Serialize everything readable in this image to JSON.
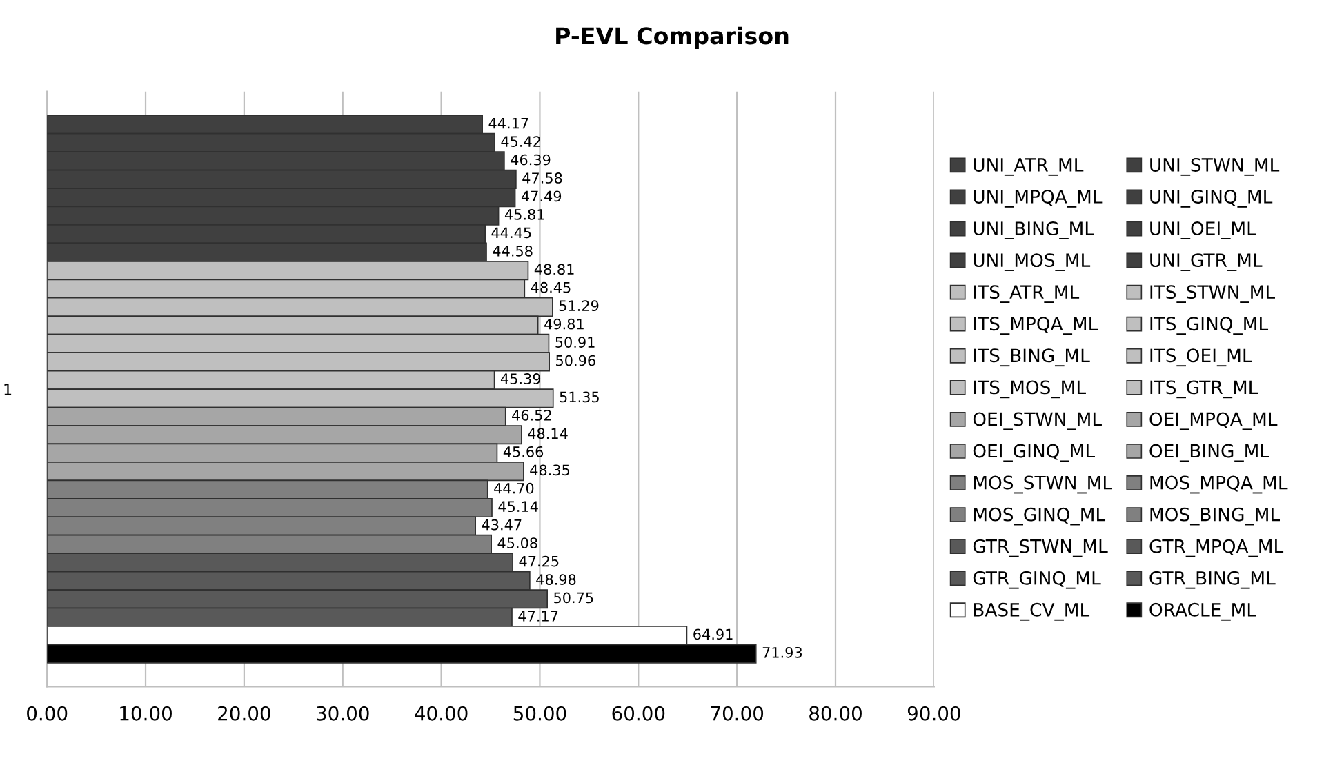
{
  "chart_data": {
    "type": "bar",
    "orientation": "horizontal",
    "title": "P-EVL Comparison",
    "categories": [
      "1"
    ],
    "xlim": [
      0,
      90
    ],
    "xticks": [
      {
        "value": 0,
        "label": "0.00"
      },
      {
        "value": 10,
        "label": "10.00"
      },
      {
        "value": 20,
        "label": "20.00"
      },
      {
        "value": 30,
        "label": "30.00"
      },
      {
        "value": 40,
        "label": "40.00"
      },
      {
        "value": 50,
        "label": "50.00"
      },
      {
        "value": 60,
        "label": "60.00"
      },
      {
        "value": 70,
        "label": "70.00"
      },
      {
        "value": 80,
        "label": "80.00"
      },
      {
        "value": 90,
        "label": "90.00"
      }
    ],
    "grid": "x",
    "legend": "right",
    "series": [
      {
        "name": "UNI_ATR_ML",
        "color": "#404040",
        "values": [
          44.17
        ],
        "value_labels": [
          "44.17"
        ]
      },
      {
        "name": "UNI_STWN_ML",
        "color": "#404040",
        "values": [
          45.42
        ],
        "value_labels": [
          "45.42"
        ]
      },
      {
        "name": "UNI_MPQA_ML",
        "color": "#404040",
        "values": [
          46.39
        ],
        "value_labels": [
          "46.39"
        ]
      },
      {
        "name": "UNI_GINQ_ML",
        "color": "#404040",
        "values": [
          47.58
        ],
        "value_labels": [
          "47.58"
        ]
      },
      {
        "name": "UNI_BING_ML",
        "color": "#404040",
        "values": [
          47.49
        ],
        "value_labels": [
          "47.49"
        ]
      },
      {
        "name": "UNI_OEI_ML",
        "color": "#404040",
        "values": [
          45.81
        ],
        "value_labels": [
          "45.81"
        ]
      },
      {
        "name": "UNI_MOS_ML",
        "color": "#404040",
        "values": [
          44.45
        ],
        "value_labels": [
          "44.45"
        ]
      },
      {
        "name": "UNI_GTR_ML",
        "color": "#404040",
        "values": [
          44.58
        ],
        "value_labels": [
          "44.58"
        ]
      },
      {
        "name": "ITS_ATR_ML",
        "color": "#bfbfbf",
        "values": [
          48.81
        ],
        "value_labels": [
          "48.81"
        ]
      },
      {
        "name": "ITS_STWN_ML",
        "color": "#bfbfbf",
        "values": [
          48.45
        ],
        "value_labels": [
          "48.45"
        ]
      },
      {
        "name": "ITS_MPQA_ML",
        "color": "#bfbfbf",
        "values": [
          51.29
        ],
        "value_labels": [
          "51.29"
        ]
      },
      {
        "name": "ITS_GINQ_ML",
        "color": "#bfbfbf",
        "values": [
          49.81
        ],
        "value_labels": [
          "49.81"
        ]
      },
      {
        "name": "ITS_BING_ML",
        "color": "#bfbfbf",
        "values": [
          50.91
        ],
        "value_labels": [
          "50.91"
        ]
      },
      {
        "name": "ITS_OEI_ML",
        "color": "#bfbfbf",
        "values": [
          50.96
        ],
        "value_labels": [
          "50.96"
        ]
      },
      {
        "name": "ITS_MOS_ML",
        "color": "#bfbfbf",
        "values": [
          45.39
        ],
        "value_labels": [
          "45.39"
        ]
      },
      {
        "name": "ITS_GTR_ML",
        "color": "#bfbfbf",
        "values": [
          51.35
        ],
        "value_labels": [
          "51.35"
        ]
      },
      {
        "name": "OEI_STWN_ML",
        "color": "#a6a6a6",
        "values": [
          46.52
        ],
        "value_labels": [
          "46.52"
        ]
      },
      {
        "name": "OEI_MPQA_ML",
        "color": "#a6a6a6",
        "values": [
          48.14
        ],
        "value_labels": [
          "48.14"
        ]
      },
      {
        "name": "OEI_GINQ_ML",
        "color": "#a6a6a6",
        "values": [
          45.66
        ],
        "value_labels": [
          "45.66"
        ]
      },
      {
        "name": "OEI_BING_ML",
        "color": "#a6a6a6",
        "values": [
          48.35
        ],
        "value_labels": [
          "48.35"
        ]
      },
      {
        "name": "MOS_STWN_ML",
        "color": "#808080",
        "values": [
          44.7
        ],
        "value_labels": [
          "44.70"
        ]
      },
      {
        "name": "MOS_MPQA_ML",
        "color": "#808080",
        "values": [
          45.14
        ],
        "value_labels": [
          "45.14"
        ]
      },
      {
        "name": "MOS_GINQ_ML",
        "color": "#808080",
        "values": [
          43.47
        ],
        "value_labels": [
          "43.47"
        ]
      },
      {
        "name": "MOS_BING_ML",
        "color": "#808080",
        "values": [
          45.08
        ],
        "value_labels": [
          "45.08"
        ]
      },
      {
        "name": "GTR_STWN_ML",
        "color": "#595959",
        "values": [
          47.25
        ],
        "value_labels": [
          "47.25"
        ]
      },
      {
        "name": "GTR_MPQA_ML",
        "color": "#595959",
        "values": [
          48.98
        ],
        "value_labels": [
          "48.98"
        ]
      },
      {
        "name": "GTR_GINQ_ML",
        "color": "#595959",
        "values": [
          50.75
        ],
        "value_labels": [
          "50.75"
        ]
      },
      {
        "name": "GTR_BING_ML",
        "color": "#595959",
        "values": [
          47.17
        ],
        "value_labels": [
          "47.17"
        ]
      },
      {
        "name": "BASE_CV_ML",
        "color": "#ffffff",
        "values": [
          64.91
        ],
        "value_labels": [
          "64.91"
        ]
      },
      {
        "name": "ORACLE_ML",
        "color": "#000000",
        "values": [
          71.93
        ],
        "value_labels": [
          "71.93"
        ]
      }
    ]
  }
}
